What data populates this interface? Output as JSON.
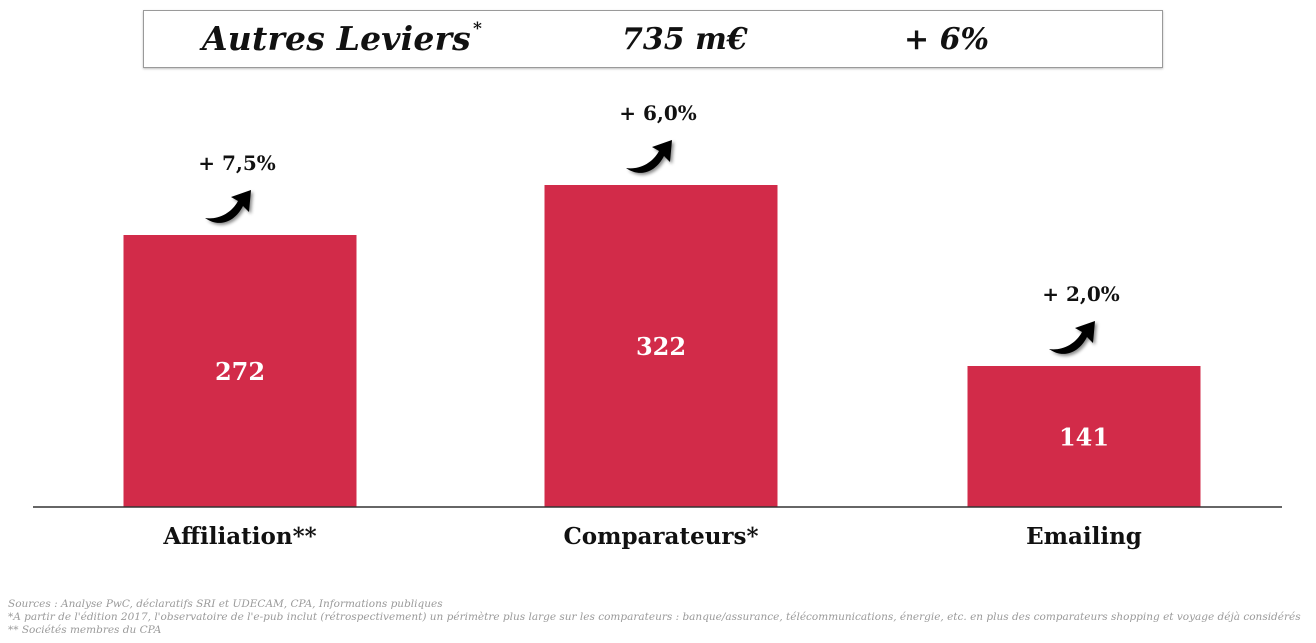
{
  "header": {
    "title": "Autres Leviers",
    "title_mark": "*",
    "total": "735 m€",
    "growth": "+ 6%"
  },
  "chart_data": {
    "type": "bar",
    "categories": [
      "Affiliation**",
      "Comparateurs*",
      "Emailing"
    ],
    "values": [
      272,
      322,
      141
    ],
    "value_labels": [
      "272",
      "322",
      "141"
    ],
    "growth_labels": [
      "+ 7,5%",
      "+ 6,0%",
      "+ 2,0%"
    ],
    "title": "",
    "xlabel": "",
    "ylabel": "",
    "ylim": [
      0,
      340
    ],
    "grid": false,
    "bar_color": "#d22b49",
    "growth_direction": "up"
  },
  "footnotes": {
    "sources": "Sources : Analyse PwC, déclaratifs SRI et UDECAM, CPA, Informations publiques",
    "note1": "*A partir de l'édition 2017, l'observatoire de l'e-pub inclut (rétrospectivement) un périmètre plus large sur les comparateurs : banque/assurance, télécommunications, énergie, etc. en plus des comparateurs shopping et voyage déjà considérés",
    "note2": "** Sociétés membres du CPA"
  }
}
